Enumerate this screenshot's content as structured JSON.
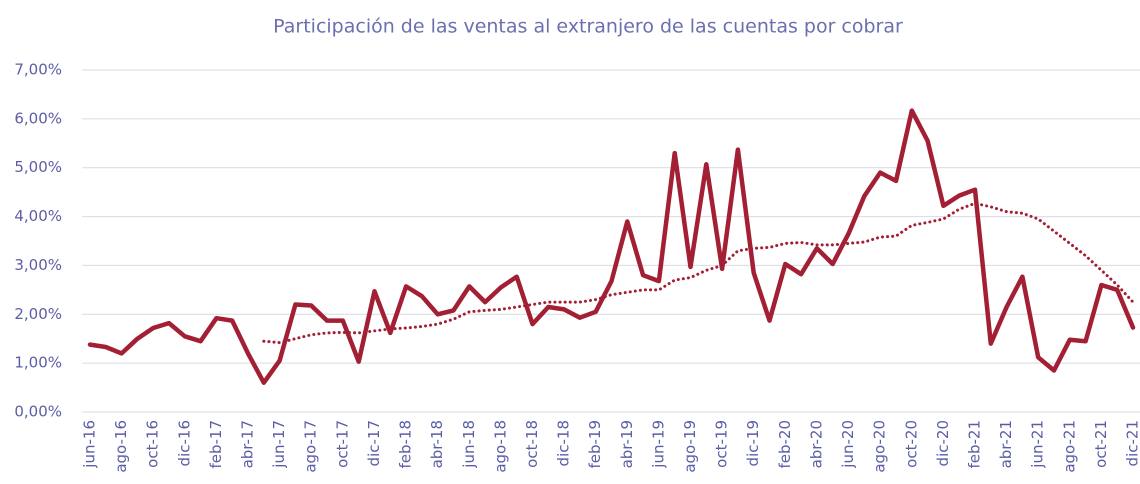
{
  "chart_data": {
    "type": "line",
    "title": "Participación de las ventas al extranjero de las cuentas por cobrar",
    "categories": [
      "jun-16",
      null,
      "ago-16",
      null,
      "oct-16",
      null,
      "dic-16",
      null,
      "feb-17",
      null,
      "abr-17",
      null,
      "jun-17",
      null,
      "ago-17",
      null,
      "oct-17",
      null,
      "dic-17",
      null,
      "feb-18",
      null,
      "abr-18",
      null,
      "jun-18",
      null,
      "ago-18",
      null,
      "oct-18",
      null,
      "dic-18",
      null,
      "feb-19",
      null,
      "abr-19",
      null,
      "jun-19",
      null,
      "ago-19",
      null,
      "oct-19",
      null,
      "dic-19",
      null,
      "feb-20",
      null,
      "abr-20",
      null,
      "jun-20",
      null,
      "ago-20",
      null,
      "oct-20",
      null,
      "dic-20",
      null,
      "feb-21",
      null,
      "abr-21",
      null,
      "jun-21",
      null,
      "ago-21",
      null,
      "oct-21",
      null,
      "dic-21"
    ],
    "series": [
      {
        "color": "#a31f34",
        "style": "solid",
        "values": [
          1.38,
          1.33,
          1.2,
          1.5,
          1.72,
          1.82,
          1.55,
          1.45,
          1.92,
          1.87,
          1.2,
          0.6,
          1.05,
          2.2,
          2.18,
          1.87,
          1.87,
          1.03,
          2.47,
          1.62,
          2.57,
          2.37,
          2.0,
          2.08,
          2.57,
          2.25,
          2.55,
          2.77,
          1.8,
          2.15,
          2.1,
          1.93,
          2.05,
          2.68,
          3.9,
          2.8,
          2.68,
          5.3,
          2.97,
          5.07,
          2.93,
          5.37,
          2.85,
          1.87,
          3.03,
          2.82,
          3.35,
          3.03,
          3.65,
          4.42,
          4.9,
          4.73,
          6.17,
          5.55,
          4.22,
          4.43,
          4.55,
          1.4,
          2.15,
          2.77,
          1.12,
          0.85,
          1.48,
          1.45,
          2.6,
          2.5,
          1.73
        ]
      },
      {
        "color": "#a31f34",
        "style": "dotted",
        "values": [
          null,
          null,
          null,
          null,
          null,
          null,
          null,
          null,
          null,
          null,
          null,
          1.45,
          1.42,
          1.5,
          1.58,
          1.62,
          1.63,
          1.62,
          1.66,
          1.7,
          1.72,
          1.75,
          1.8,
          1.9,
          2.05,
          2.08,
          2.1,
          2.15,
          2.2,
          2.25,
          2.25,
          2.25,
          2.3,
          2.4,
          2.45,
          2.5,
          2.5,
          2.7,
          2.75,
          2.9,
          3.0,
          3.3,
          3.35,
          3.37,
          3.45,
          3.47,
          3.42,
          3.42,
          3.45,
          3.48,
          3.58,
          3.6,
          3.82,
          3.88,
          3.95,
          4.15,
          4.27,
          4.2,
          4.1,
          4.07,
          3.95,
          3.7,
          3.45,
          3.2,
          2.9,
          2.6,
          2.25
        ]
      }
    ],
    "ylim": [
      0,
      7
    ],
    "yticks": [
      {
        "value": 0,
        "label": "0,00%"
      },
      {
        "value": 1,
        "label": "1,00%"
      },
      {
        "value": 2,
        "label": "2,00%"
      },
      {
        "value": 3,
        "label": "3,00%"
      },
      {
        "value": 4,
        "label": "4,00%"
      },
      {
        "value": 5,
        "label": "5,00%"
      },
      {
        "value": 6,
        "label": "6,00%"
      },
      {
        "value": 7,
        "label": "7,00%"
      }
    ],
    "grid": true
  }
}
